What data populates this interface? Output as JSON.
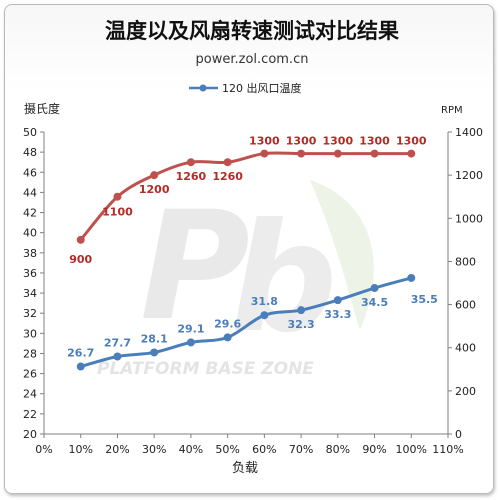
{
  "chart_data": {
    "type": "line",
    "title": "温度以及风扇转速测试对比结果",
    "subtitle": "power.zol.com.cn",
    "watermark": "PLATFORM BASE ZONE",
    "xlabel": "负载",
    "ylabel": "摄氏度",
    "y2label": "RPM",
    "categories": [
      "10%",
      "20%",
      "30%",
      "40%",
      "50%",
      "60%",
      "70%",
      "80%",
      "90%",
      "100%"
    ],
    "x_ticks": [
      "0%",
      "10%",
      "20%",
      "30%",
      "40%",
      "50%",
      "60%",
      "70%",
      "80%",
      "90%",
      "100%",
      "110%"
    ],
    "y_ticks": [
      "20",
      "22",
      "24",
      "26",
      "28",
      "30",
      "32",
      "34",
      "36",
      "38",
      "40",
      "42",
      "44",
      "46",
      "48",
      "50"
    ],
    "y2_ticks": [
      "0",
      "200",
      "400",
      "600",
      "800",
      "1000",
      "1200",
      "1400"
    ],
    "ylim": [
      20,
      50
    ],
    "y2lim": [
      0,
      1400
    ],
    "grid": false,
    "legend_position": "top",
    "series": [
      {
        "name": "120 出风口温度",
        "axis": "left",
        "color": "#4a7ebb",
        "values": [
          26.7,
          27.7,
          28.1,
          29.1,
          29.6,
          31.8,
          32.3,
          33.3,
          34.5,
          35.5
        ],
        "labels": [
          "26.7",
          "27.7",
          "28.1",
          "29.1",
          "29.6",
          "31.8",
          "32.3",
          "33.3",
          "34.5",
          "35.5"
        ]
      },
      {
        "axis": "right",
        "color": "#c0504d",
        "label_color": "#b42a25",
        "values": [
          900,
          1100,
          1200,
          1260,
          1260,
          1300,
          1300,
          1300,
          1300,
          1300
        ],
        "labels": [
          "900",
          "1100",
          "1200",
          "1260",
          "1260",
          "1300",
          "1300",
          "1300",
          "1300",
          "1300"
        ]
      }
    ]
  }
}
